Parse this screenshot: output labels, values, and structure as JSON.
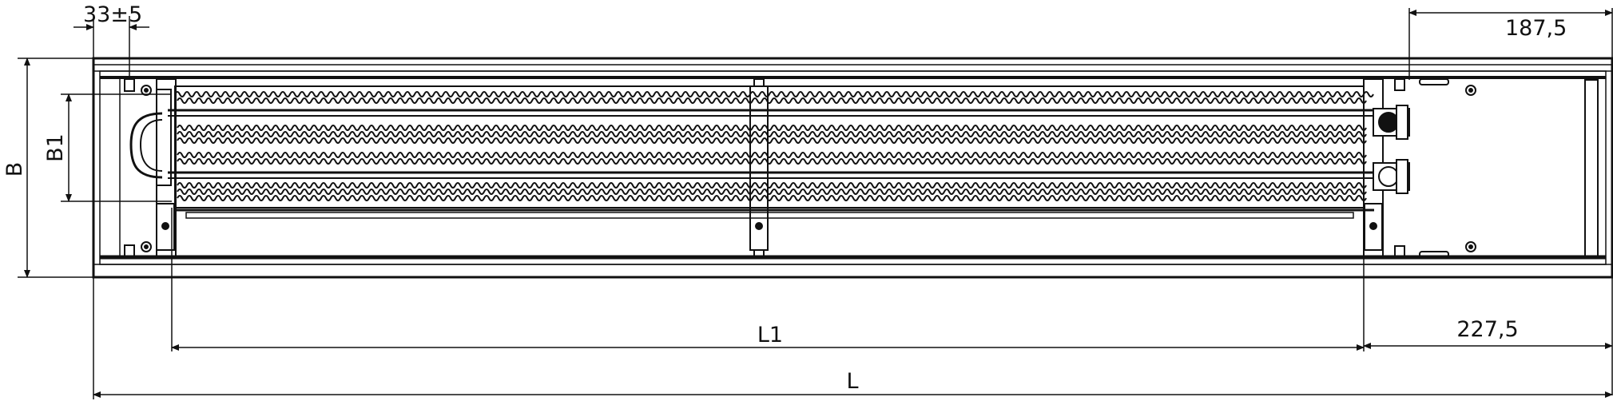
{
  "drawing": {
    "dimensions": {
      "top_left": "33±5",
      "top_right": "187,5",
      "bottom_right": "227,5",
      "width_outer": "B",
      "width_inner": "B1",
      "length_inner": "L1",
      "length_outer": "L"
    },
    "colors": {
      "line": "#111111",
      "background": "#ffffff"
    }
  }
}
